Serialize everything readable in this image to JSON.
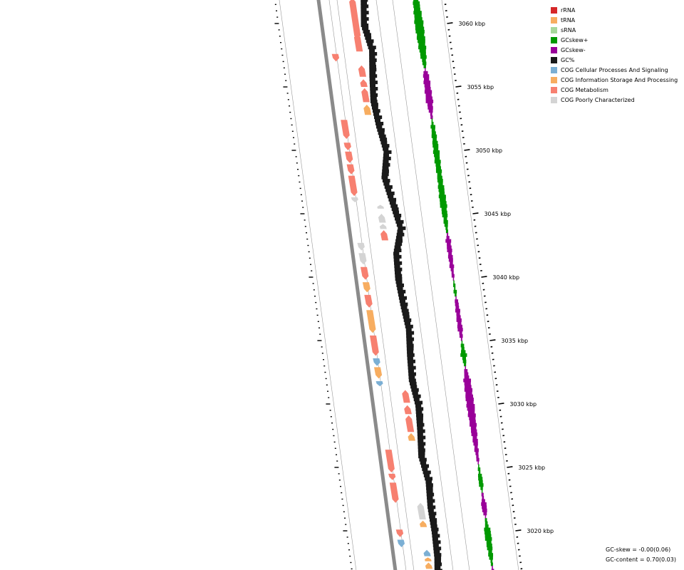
{
  "legend": {
    "items": [
      {
        "label": "rRNA",
        "color": "#d62728"
      },
      {
        "label": "tRNA",
        "color": "#f7ad60"
      },
      {
        "label": "sRNA",
        "color": "#a6d89b"
      },
      {
        "label": "GCskew+",
        "color": "#009900"
      },
      {
        "label": "GCskew-",
        "color": "#990099"
      },
      {
        "label": "GC%",
        "color": "#1a1a1a"
      },
      {
        "label": "COG Cellular Processes And Signaling",
        "color": "#7bafd4"
      },
      {
        "label": "COG Information Storage And Processing",
        "color": "#f7ad60"
      },
      {
        "label": "COG Metabolism",
        "color": "#f78070"
      },
      {
        "label": "COG Poorly Characterized",
        "color": "#d4d4d4"
      }
    ]
  },
  "stats": {
    "gc_skew": "GC-skew = -0.00(0.06)",
    "gc_content": "GC-content = 0.70(0.03)"
  },
  "chart_data": {
    "type": "genome-map",
    "axis_unit": "kbp",
    "visible_range_kbp": [
      3017,
      3062
    ],
    "tick_labels": [
      {
        "kbp": 3060,
        "label": "3060 kbp"
      },
      {
        "kbp": 3055,
        "label": "3055 kbp"
      },
      {
        "kbp": 3050,
        "label": "3050 kbp"
      },
      {
        "kbp": 3045,
        "label": "3045 kbp"
      },
      {
        "kbp": 3040,
        "label": "3040 kbp"
      },
      {
        "kbp": 3035,
        "label": "3035 kbp"
      },
      {
        "kbp": 3030,
        "label": "3030 kbp"
      },
      {
        "kbp": 3025,
        "label": "3025 kbp"
      },
      {
        "kbp": 3020,
        "label": "3020 kbp"
      }
    ],
    "tracks": [
      "COG features (forward / reverse)",
      "GC%",
      "GC-skew"
    ],
    "features": [
      {
        "cat": "COG Metabolism",
        "start": 3059.0,
        "end": 3062.0,
        "strand": "+"
      },
      {
        "cat": "COG Metabolism",
        "start": 3057.8,
        "end": 3059.2,
        "strand": "+"
      },
      {
        "cat": "COG Metabolism",
        "start": 3057.0,
        "end": 3057.6,
        "strand": "-"
      },
      {
        "cat": "COG Metabolism",
        "start": 3055.8,
        "end": 3056.7,
        "strand": "+"
      },
      {
        "cat": "COG Metabolism",
        "start": 3055.0,
        "end": 3055.6,
        "strand": "+"
      },
      {
        "cat": "COG Metabolism",
        "start": 3053.8,
        "end": 3054.9,
        "strand": "+"
      },
      {
        "cat": "COG Information Storage And Processing",
        "start": 3052.8,
        "end": 3053.6,
        "strand": "+"
      },
      {
        "cat": "COG Metabolism",
        "start": 3050.9,
        "end": 3052.4,
        "strand": "-"
      },
      {
        "cat": "COG Metabolism",
        "start": 3050.0,
        "end": 3050.6,
        "strand": "-"
      },
      {
        "cat": "COG Metabolism",
        "start": 3049.0,
        "end": 3049.9,
        "strand": "-"
      },
      {
        "cat": "COG Metabolism",
        "start": 3048.1,
        "end": 3048.9,
        "strand": "-"
      },
      {
        "cat": "COG Metabolism",
        "start": 3046.4,
        "end": 3048.0,
        "strand": "-"
      },
      {
        "cat": "COG Poorly Characterized",
        "start": 3045.9,
        "end": 3046.3,
        "strand": "-"
      },
      {
        "cat": "COG Poorly Characterized",
        "start": 3045.4,
        "end": 3045.7,
        "strand": "+"
      },
      {
        "cat": "COG Poorly Characterized",
        "start": 3044.3,
        "end": 3045.0,
        "strand": "+"
      },
      {
        "cat": "COG Poorly Characterized",
        "start": 3043.8,
        "end": 3044.2,
        "strand": "+"
      },
      {
        "cat": "COG Metabolism",
        "start": 3042.9,
        "end": 3043.7,
        "strand": "+"
      },
      {
        "cat": "COG Poorly Characterized",
        "start": 3042.1,
        "end": 3042.7,
        "strand": "-"
      },
      {
        "cat": "COG Poorly Characterized",
        "start": 3041.0,
        "end": 3041.9,
        "strand": "-"
      },
      {
        "cat": "COG Metabolism",
        "start": 3039.8,
        "end": 3040.8,
        "strand": "-"
      },
      {
        "cat": "COG Information Storage And Processing",
        "start": 3038.8,
        "end": 3039.6,
        "strand": "-"
      },
      {
        "cat": "COG Metabolism",
        "start": 3037.6,
        "end": 3038.6,
        "strand": "-"
      },
      {
        "cat": "COG Information Storage And Processing",
        "start": 3035.6,
        "end": 3037.4,
        "strand": "-"
      },
      {
        "cat": "COG Metabolism",
        "start": 3033.8,
        "end": 3035.4,
        "strand": "-"
      },
      {
        "cat": "COG Cellular Processes And Signaling",
        "start": 3033.0,
        "end": 3033.6,
        "strand": "-"
      },
      {
        "cat": "COG Information Storage And Processing",
        "start": 3032.0,
        "end": 3032.9,
        "strand": "-"
      },
      {
        "cat": "COG Cellular Processes And Signaling",
        "start": 3031.4,
        "end": 3031.8,
        "strand": "-"
      },
      {
        "cat": "COG Metabolism",
        "start": 3030.1,
        "end": 3031.1,
        "strand": "+"
      },
      {
        "cat": "COG Metabolism",
        "start": 3029.2,
        "end": 3029.9,
        "strand": "+"
      },
      {
        "cat": "COG Metabolism",
        "start": 3027.8,
        "end": 3029.1,
        "strand": "+"
      },
      {
        "cat": "COG Information Storage And Processing",
        "start": 3027.1,
        "end": 3027.7,
        "strand": "+"
      },
      {
        "cat": "COG Metabolism",
        "start": 3024.6,
        "end": 3026.4,
        "strand": "-"
      },
      {
        "cat": "COG Metabolism",
        "start": 3024.0,
        "end": 3024.5,
        "strand": "-"
      },
      {
        "cat": "COG Metabolism",
        "start": 3022.2,
        "end": 3023.8,
        "strand": "-"
      },
      {
        "cat": "COG Poorly Characterized",
        "start": 3020.9,
        "end": 3022.2,
        "strand": "+"
      },
      {
        "cat": "COG Information Storage And Processing",
        "start": 3020.3,
        "end": 3020.8,
        "strand": "+"
      },
      {
        "cat": "COG Metabolism",
        "start": 3019.5,
        "end": 3020.1,
        "strand": "-"
      },
      {
        "cat": "COG Cellular Processes And Signaling",
        "start": 3018.7,
        "end": 3019.3,
        "strand": "-"
      },
      {
        "cat": "COG Cellular Processes And Signaling",
        "start": 3018.0,
        "end": 3018.5,
        "strand": "+"
      },
      {
        "cat": "COG Information Storage And Processing",
        "start": 3017.6,
        "end": 3017.9,
        "strand": "+"
      },
      {
        "cat": "COG Information Storage And Processing",
        "start": 3017.0,
        "end": 3017.5,
        "strand": "+"
      }
    ],
    "gc_content": [
      {
        "kbp": 3062,
        "v": 0.3
      },
      {
        "kbp": 3060,
        "v": 0.1
      },
      {
        "kbp": 3058,
        "v": 0.4
      },
      {
        "kbp": 3056,
        "v": 0.2
      },
      {
        "kbp": 3054,
        "v": 0.05
      },
      {
        "kbp": 3052,
        "v": 0.2
      },
      {
        "kbp": 3050,
        "v": 0.45
      },
      {
        "kbp": 3048,
        "v": 0.1
      },
      {
        "kbp": 3046,
        "v": 0.4
      },
      {
        "kbp": 3044,
        "v": 0.7
      },
      {
        "kbp": 3042,
        "v": 0.2
      },
      {
        "kbp": 3040,
        "v": 0.1
      },
      {
        "kbp": 3038,
        "v": 0.2
      },
      {
        "kbp": 3036,
        "v": 0.35
      },
      {
        "kbp": 3034,
        "v": 0.2
      },
      {
        "kbp": 3032,
        "v": 0.1
      },
      {
        "kbp": 3030,
        "v": 0.3
      },
      {
        "kbp": 3028,
        "v": 0.2
      },
      {
        "kbp": 3026,
        "v": 0.05
      },
      {
        "kbp": 3024,
        "v": 0.3
      },
      {
        "kbp": 3022,
        "v": 0.2
      },
      {
        "kbp": 3020,
        "v": 0.25
      },
      {
        "kbp": 3018,
        "v": 0.2
      },
      {
        "kbp": 3017,
        "v": 0.1
      }
    ],
    "gc_skew": [
      {
        "kbp": 3062,
        "v": 0.5
      },
      {
        "kbp": 3060,
        "v": 0.8
      },
      {
        "kbp": 3058,
        "v": 0.6
      },
      {
        "kbp": 3057,
        "v": 0.3
      },
      {
        "kbp": 3056,
        "v": -0.5
      },
      {
        "kbp": 3054,
        "v": -0.6
      },
      {
        "kbp": 3053,
        "v": -0.2
      },
      {
        "kbp": 3052,
        "v": 0.3
      },
      {
        "kbp": 3050,
        "v": 0.5
      },
      {
        "kbp": 3048,
        "v": 0.4
      },
      {
        "kbp": 3046,
        "v": 0.6
      },
      {
        "kbp": 3044,
        "v": 0.2
      },
      {
        "kbp": 3043,
        "v": -0.4
      },
      {
        "kbp": 3041,
        "v": -0.3
      },
      {
        "kbp": 3039,
        "v": 0.2
      },
      {
        "kbp": 3038,
        "v": -0.3
      },
      {
        "kbp": 3036,
        "v": -0.4
      },
      {
        "kbp": 3034,
        "v": 0.5
      },
      {
        "kbp": 3032,
        "v": -0.6
      },
      {
        "kbp": 3030,
        "v": -0.7
      },
      {
        "kbp": 3028,
        "v": -0.5
      },
      {
        "kbp": 3026,
        "v": -0.2
      },
      {
        "kbp": 3024,
        "v": 0.4
      },
      {
        "kbp": 3022,
        "v": -0.5
      },
      {
        "kbp": 3020,
        "v": 0.6
      },
      {
        "kbp": 3018,
        "v": 0.3
      },
      {
        "kbp": 3017,
        "v": -0.2
      }
    ]
  }
}
